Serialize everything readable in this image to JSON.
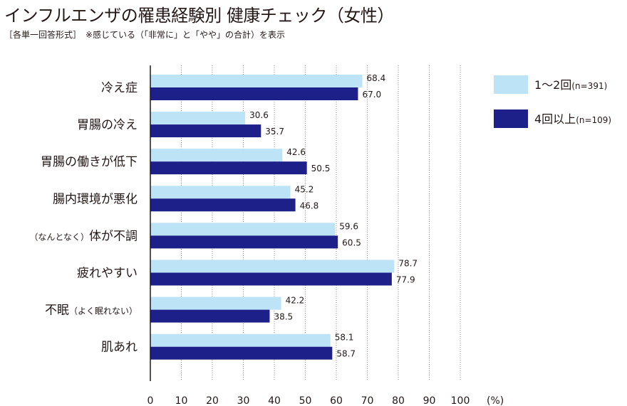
{
  "header": {
    "title": "インフルエンザの罹患経験別 健康チェック（女性）",
    "subtitle": "［各単一回答形式］　※感じている（「非常に」と「やや」の合計）を表示"
  },
  "chart_data": {
    "type": "bar",
    "orientation": "horizontal",
    "categories": [
      {
        "main": "冷え症",
        "sub": "",
        "sub_pos": ""
      },
      {
        "main": "胃腸の冷え",
        "sub": "",
        "sub_pos": ""
      },
      {
        "main": "胃腸の働きが低下",
        "sub": "",
        "sub_pos": ""
      },
      {
        "main": "腸内環境が悪化",
        "sub": "",
        "sub_pos": ""
      },
      {
        "main": "体が不調",
        "sub": "（なんとなく）",
        "sub_pos": "before"
      },
      {
        "main": "疲れやすい",
        "sub": "",
        "sub_pos": ""
      },
      {
        "main": "不眠",
        "sub": "（よく眠れない）",
        "sub_pos": "after"
      },
      {
        "main": "肌あれ",
        "sub": "",
        "sub_pos": ""
      }
    ],
    "series": [
      {
        "name": "1〜2回",
        "count": "(n=391)",
        "color": "#bde3f7",
        "values": [
          68.4,
          30.6,
          42.6,
          45.2,
          59.6,
          78.7,
          42.2,
          58.1
        ]
      },
      {
        "name": "4回以上",
        "count": "(n=109)",
        "color": "#1d2088",
        "values": [
          67.0,
          35.7,
          50.5,
          46.8,
          60.5,
          77.9,
          38.5,
          58.7
        ]
      }
    ],
    "xlim": [
      0,
      100
    ],
    "xticks": [
      0,
      10,
      20,
      30,
      40,
      50,
      60,
      70,
      80,
      90,
      100
    ],
    "xlabel": "(%)",
    "grid": "vertical-dotted",
    "legend_position": "right"
  }
}
